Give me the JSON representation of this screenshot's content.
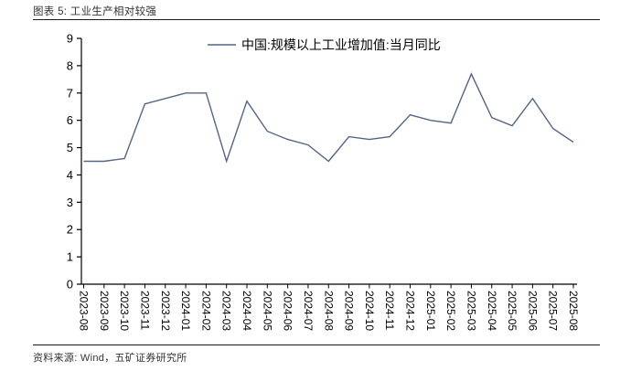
{
  "figure": {
    "title": "图表 5: 工业生产相对较强",
    "source_note": "资料来源: Wind，五矿证券研究所"
  },
  "colors": {
    "series_line": "#546586",
    "axis": "#000000",
    "divider": "#1a1a1a",
    "text": "#333333"
  },
  "chart_data": {
    "type": "line",
    "title": "",
    "xlabel": "",
    "ylabel": "",
    "legend": "中国:规模以上工业增加值:当月同比",
    "legend_position": "top-center",
    "grid": false,
    "ylim": [
      0,
      9
    ],
    "y_ticks": [
      0,
      1,
      2,
      3,
      4,
      5,
      6,
      7,
      8,
      9
    ],
    "categories": [
      "2023-08",
      "2023-09",
      "2023-10",
      "2023-11",
      "2023-12",
      "2024-01",
      "2024-02",
      "2024-03",
      "2024-04",
      "2024-05",
      "2024-06",
      "2024-07",
      "2024-08",
      "2024-09",
      "2024-10",
      "2024-11",
      "2024-12",
      "2025-01",
      "2025-02",
      "2025-03",
      "2025-04",
      "2025-05",
      "2025-06",
      "2025-07",
      "2025-08"
    ],
    "series": [
      {
        "name": "中国:规模以上工业增加值:当月同比",
        "color": "#546586",
        "values": [
          4.5,
          4.5,
          4.6,
          6.6,
          6.8,
          7.0,
          7.0,
          4.5,
          6.7,
          5.6,
          5.3,
          5.1,
          4.5,
          5.4,
          5.3,
          5.4,
          6.2,
          6.0,
          5.9,
          7.7,
          6.1,
          5.8,
          6.8,
          5.7,
          5.2
        ]
      }
    ]
  }
}
